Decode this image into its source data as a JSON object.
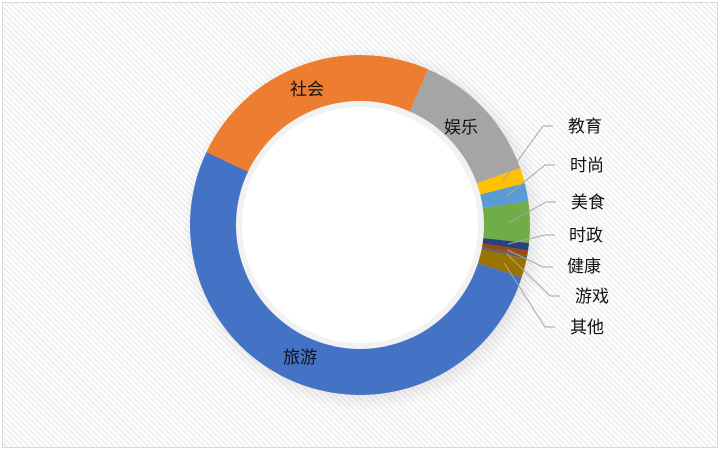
{
  "chart_data": {
    "type": "doughnut",
    "title": "",
    "start_angle_deg": 23.6,
    "slices": [
      {
        "label": "娱乐",
        "value": 13.0,
        "color": "#a5a5a5"
      },
      {
        "label": "教育",
        "value": 1.5,
        "color": "#ffc000"
      },
      {
        "label": "时尚",
        "value": 1.75,
        "color": "#5b9bd5"
      },
      {
        "label": "美食",
        "value": 3.9,
        "color": "#70ad47"
      },
      {
        "label": "时政",
        "value": 0.7,
        "color": "#264478"
      },
      {
        "label": "健康",
        "value": 0.5,
        "color": "#9e480e"
      },
      {
        "label": "游戏",
        "value": 0.3,
        "color": "#636363"
      },
      {
        "label": "其他",
        "value": 1.8,
        "color": "#997300"
      },
      {
        "label": "旅游",
        "value": 52.1,
        "color": "#4472c4"
      },
      {
        "label": "社会",
        "value": 24.5,
        "color": "#ed7d31"
      }
    ],
    "legend": "none",
    "data_labels": "category names"
  }
}
